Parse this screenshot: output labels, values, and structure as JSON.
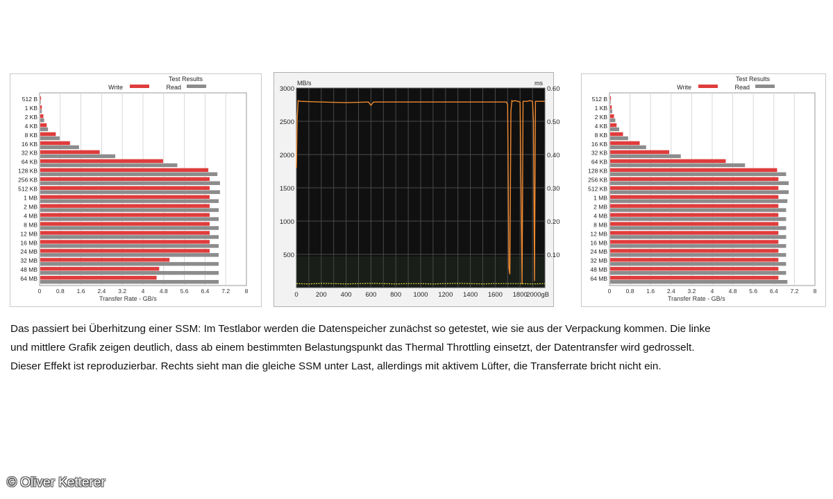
{
  "colors": {
    "write": "#e03c3c",
    "read": "#8c8c8c",
    "curve": "#f08a30",
    "latency": "#e8e040",
    "plot_bg": "#101010"
  },
  "chart_data": [
    {
      "type": "bar",
      "orientation": "horizontal",
      "title": "Test Results",
      "xlabel": "Transfer Rate - GB/s",
      "xlim": [
        0,
        8
      ],
      "xticks": [
        "0",
        "0.8",
        "1.6",
        "2.4",
        "3.2",
        "4",
        "4.8",
        "5.6",
        "6.4",
        "7.2",
        "8"
      ],
      "categories": [
        "512 B",
        "1 KB",
        "2 KB",
        "4 KB",
        "8 KB",
        "16 KB",
        "32 KB",
        "64 KB",
        "128 KB",
        "256 KB",
        "512 KB",
        "1 MB",
        "2 MB",
        "4 MB",
        "8 MB",
        "12 MB",
        "16 MB",
        "24 MB",
        "32 MB",
        "48 MB",
        "64 MB"
      ],
      "series": [
        {
          "name": "Write",
          "values": [
            0.03,
            0.06,
            0.12,
            0.25,
            0.6,
            1.15,
            2.3,
            4.75,
            6.5,
            6.55,
            6.55,
            6.55,
            6.55,
            6.55,
            6.55,
            6.55,
            6.55,
            6.55,
            5.0,
            4.6,
            4.5
          ]
        },
        {
          "name": "Read",
          "values": [
            0.02,
            0.06,
            0.15,
            0.3,
            0.75,
            1.5,
            2.9,
            5.3,
            6.85,
            6.95,
            6.95,
            6.9,
            6.9,
            6.9,
            6.9,
            6.9,
            6.9,
            6.9,
            6.9,
            6.9,
            6.9
          ]
        }
      ],
      "legend": "top"
    },
    {
      "type": "line",
      "ylabel_left": "MB/s",
      "ylabel_right": "ms",
      "xlim": [
        0,
        2000
      ],
      "x_tick_labels": [
        "0",
        "200",
        "400",
        "600",
        "800",
        "1000",
        "1200",
        "1400",
        "1600",
        "1800",
        "2000gB"
      ],
      "y_tick_labels_left": [
        "3000",
        "2500",
        "2000",
        "1500",
        "1000",
        "500"
      ],
      "y_tick_labels_right": [
        "0.60",
        "0.50",
        "0.40",
        "0.30",
        "0.20",
        "0.10"
      ],
      "ylim_left": [
        0,
        3000
      ],
      "ylim_right": [
        0,
        0.6
      ],
      "grid": true,
      "series": [
        {
          "axis": "left",
          "x": [
            0,
            6,
            14,
            30,
            200,
            400,
            580,
            600,
            620,
            800,
            1000,
            1200,
            1400,
            1600,
            1690,
            1700,
            1710,
            1718,
            1726,
            1734,
            1742,
            1760,
            1780,
            1800,
            1808,
            1816,
            1824,
            1832,
            1840,
            1860,
            1880,
            1900,
            1908,
            1916,
            1924,
            1932,
            1940,
            1960,
            1980,
            2000
          ],
          "y": [
            1800,
            2550,
            2810,
            2800,
            2790,
            2780,
            2790,
            2740,
            2790,
            2790,
            2790,
            2790,
            2790,
            2790,
            2790,
            2750,
            300,
            200,
            2650,
            2810,
            2800,
            2810,
            2800,
            2790,
            1500,
            50,
            2800,
            2800,
            2800,
            2800,
            2810,
            2800,
            2500,
            100,
            2800,
            2800,
            2800,
            2800,
            2800,
            2800
          ]
        },
        {
          "axis": "right",
          "x": [
            0,
            100,
            200,
            300,
            400,
            500,
            600,
            700,
            800,
            900,
            1000,
            1100,
            1200,
            1300,
            1400,
            1500,
            1600,
            1700,
            1800,
            1900,
            2000
          ],
          "y": [
            0.012,
            0.011,
            0.013,
            0.012,
            0.011,
            0.012,
            0.013,
            0.012,
            0.011,
            0.012,
            0.012,
            0.011,
            0.012,
            0.013,
            0.012,
            0.011,
            0.012,
            0.012,
            0.012,
            0.011,
            0.012
          ]
        }
      ]
    },
    {
      "type": "bar",
      "orientation": "horizontal",
      "title": "Test Results",
      "xlabel": "Transfer Rate - GB/s",
      "xlim": [
        0,
        8
      ],
      "xticks": [
        "0",
        "0.8",
        "1.6",
        "2.4",
        "3.2",
        "4",
        "4.8",
        "5.6",
        "6.4",
        "7.2",
        "8"
      ],
      "categories": [
        "512 B",
        "1 KB",
        "2 KB",
        "4 KB",
        "8 KB",
        "16 KB",
        "32 KB",
        "64 KB",
        "128 KB",
        "256 KB",
        "512 KB",
        "1 MB",
        "2 MB",
        "4 MB",
        "8 MB",
        "12 MB",
        "16 MB",
        "24 MB",
        "32 MB",
        "48 MB",
        "64 MB"
      ],
      "series": [
        {
          "name": "Write",
          "values": [
            0.03,
            0.06,
            0.15,
            0.25,
            0.5,
            1.15,
            2.3,
            4.5,
            6.5,
            6.55,
            6.55,
            6.55,
            6.55,
            6.55,
            6.55,
            6.55,
            6.55,
            6.55,
            6.55,
            6.55,
            6.55
          ]
        },
        {
          "name": "Read",
          "values": [
            0.02,
            0.08,
            0.2,
            0.35,
            0.7,
            1.4,
            2.75,
            5.25,
            6.85,
            6.95,
            6.95,
            6.9,
            6.85,
            6.85,
            6.85,
            6.85,
            6.85,
            6.85,
            6.85,
            6.85,
            6.9
          ]
        }
      ],
      "legend": "top"
    }
  ],
  "caption": {
    "line1": "Das passiert bei Überhitzung einer SSM: Im Testlabor werden die Datenspeicher zunächst so getestet, wie sie aus der Verpackung kommen. Die linke",
    "line2": "und mittlere Grafik zeigen deutlich, dass ab einem bestimmten Belastungspunkt das Thermal Throttling einsetzt, der Datentransfer wird gedrosselt.",
    "line3": "Dieser Effekt ist reproduzierbar. Rechts sieht man die gleiche SSM unter Last, allerdings mit aktivem Lüfter, die Transferrate bricht nicht ein."
  },
  "credit": "© Oliver Ketterer"
}
